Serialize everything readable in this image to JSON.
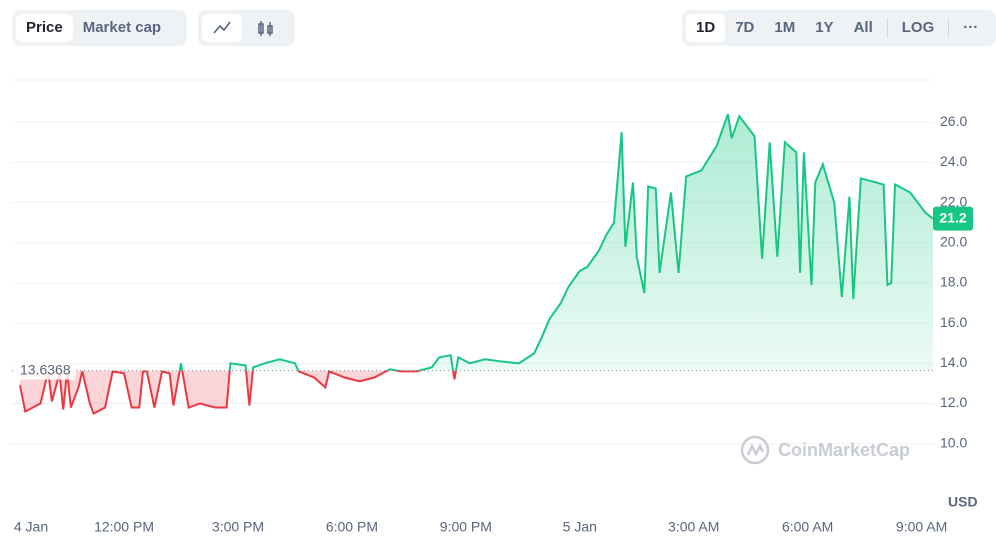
{
  "toolbar": {
    "left": [
      "Price",
      "Market cap"
    ],
    "ranges": [
      "1D",
      "7D",
      "1M",
      "1Y",
      "All"
    ],
    "log": "LOG",
    "more": "···"
  },
  "chart_data": {
    "type": "line",
    "watermark": "CoinMarketCap",
    "y_axis_label": "USD",
    "baseline": 13.6368,
    "x": [
      9.26,
      9.4,
      9.8,
      9.9,
      10.0,
      10.1,
      10.3,
      10.4,
      10.5,
      10.6,
      10.8,
      10.9,
      11.1,
      11.2,
      11.5,
      11.7,
      12.0,
      12.2,
      12.4,
      12.5,
      12.6,
      12.8,
      13.0,
      13.2,
      13.3,
      13.5,
      13.7,
      14.0,
      14.4,
      14.7,
      14.8,
      15.2,
      15.3,
      15.4,
      15.7,
      16.1,
      16.5,
      16.6,
      17.0,
      17.3,
      17.4,
      17.8,
      18.2,
      18.6,
      19.0,
      19.3,
      19.7,
      20.1,
      20.3,
      20.6,
      20.7,
      20.8,
      21.1,
      21.5,
      21.9,
      22.4,
      22.8,
      23.0,
      23.2,
      23.5,
      23.7,
      24.0,
      24.2,
      24.5,
      24.7,
      24.9,
      25.1,
      25.2,
      25.4,
      25.5,
      25.7,
      25.8,
      26.0,
      26.1,
      26.4,
      26.6,
      26.8,
      27.2,
      27.6,
      27.9,
      28.0,
      28.2,
      28.6,
      28.8,
      29.0,
      29.2,
      29.4,
      29.7,
      29.8,
      29.9,
      30.1,
      30.2,
      30.4,
      30.7,
      30.9,
      31.1,
      31.2,
      31.4,
      31.6,
      32.0,
      32.1,
      32.2,
      32.3,
      32.7,
      33.1,
      33.3
    ],
    "series": [
      {
        "name": "Price",
        "color": "#16c784",
        "color_below": "#ea3943",
        "values": [
          12.9,
          11.6,
          12.0,
          12.8,
          13.6,
          12.1,
          13.5,
          11.7,
          13.6,
          11.8,
          12.8,
          13.6,
          12.0,
          11.5,
          11.8,
          13.6,
          13.5,
          11.8,
          11.8,
          13.6,
          13.6,
          11.8,
          13.6,
          13.5,
          11.9,
          14.0,
          11.8,
          12.0,
          11.8,
          11.8,
          14.0,
          13.9,
          11.9,
          13.8,
          14.0,
          14.2,
          14.0,
          13.6,
          13.3,
          12.8,
          13.6,
          13.3,
          13.1,
          13.3,
          13.7,
          13.6,
          13.6,
          13.8,
          14.3,
          14.4,
          13.2,
          14.3,
          14.0,
          14.2,
          14.1,
          14.0,
          14.5,
          15.3,
          16.2,
          17.0,
          17.8,
          18.6,
          18.8,
          19.6,
          20.4,
          21.0,
          25.5,
          19.8,
          23.0,
          19.3,
          17.5,
          22.8,
          22.7,
          18.5,
          22.5,
          18.5,
          23.3,
          23.6,
          24.8,
          26.4,
          25.2,
          26.3,
          25.3,
          19.2,
          25.0,
          19.3,
          25.0,
          24.5,
          18.5,
          24.5,
          17.9,
          23.0,
          23.9,
          22.0,
          17.3,
          22.3,
          17.2,
          23.2,
          23.1,
          22.9,
          17.9,
          18.0,
          22.9,
          22.5,
          21.5,
          21.2
        ]
      }
    ],
    "xlim": [
      9.05,
      33.3
    ],
    "xticks": [
      {
        "value": 9.55,
        "label": "4 Jan"
      },
      {
        "value": 12,
        "label": "12:00 PM"
      },
      {
        "value": 15,
        "label": "3:00 PM"
      },
      {
        "value": 18,
        "label": "6:00 PM"
      },
      {
        "value": 21,
        "label": "9:00 PM"
      },
      {
        "value": 24,
        "label": "5 Jan"
      },
      {
        "value": 27,
        "label": "3:00 AM"
      },
      {
        "value": 30,
        "label": "6:00 AM"
      },
      {
        "value": 33,
        "label": "9:00 AM"
      }
    ],
    "ylim": [
      6.7,
      28.1
    ],
    "yticks": [
      {
        "value": 10,
        "label": "10.0"
      },
      {
        "value": 12,
        "label": "12.0"
      },
      {
        "value": 14,
        "label": "14.0"
      },
      {
        "value": 16,
        "label": "16.0"
      },
      {
        "value": 18,
        "label": "18.0"
      },
      {
        "value": 20,
        "label": "20.0"
      },
      {
        "value": 22,
        "label": "22.0"
      },
      {
        "value": 24,
        "label": "24.0"
      },
      {
        "value": 26,
        "label": "26.0"
      }
    ],
    "grid": true
  }
}
